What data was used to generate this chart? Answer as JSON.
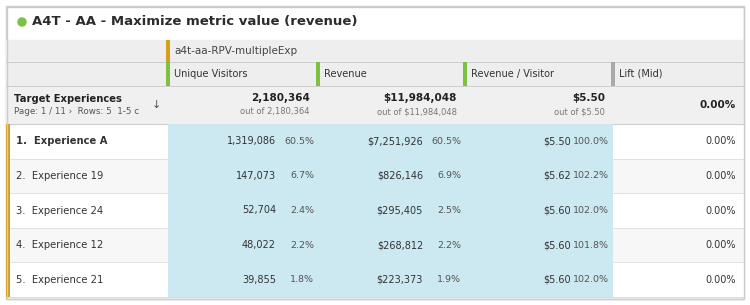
{
  "title": "A4T - AA - Maximize metric value (revenue)",
  "title_dot_color": "#7bc142",
  "bg_color": "#ffffff",
  "table_outer_bg": "#f5f5f5",
  "cell_highlight": "#cce8f0",
  "border_color": "#cccccc",
  "row_sep_color": "#dddddd",
  "yellow_bar_color": "#d4a017",
  "green_bar_color": "#7bc142",
  "gray_bar_color": "#aaaaaa",
  "subheader_text": "a4t-aa-RPV-multipleExp",
  "col_headers": [
    "Unique Visitors",
    "Revenue",
    "Revenue / Visitor",
    "Lift (Mid)"
  ],
  "rows": [
    {
      "rank": "1.",
      "name": "Experience A",
      "uv": "1,319,086",
      "uv_pct": "60.5%",
      "rev": "$7,251,926",
      "rev_pct": "60.5%",
      "rpv": "$5.50",
      "rpv_pct": "100.0%",
      "lift": "0.00%",
      "bold": true
    },
    {
      "rank": "2.",
      "name": "Experience 19",
      "uv": "147,073",
      "uv_pct": "6.7%",
      "rev": "$826,146",
      "rev_pct": "6.9%",
      "rpv": "$5.62",
      "rpv_pct": "102.2%",
      "lift": "0.00%",
      "bold": false
    },
    {
      "rank": "3.",
      "name": "Experience 24",
      "uv": "52,704",
      "uv_pct": "2.4%",
      "rev": "$295,405",
      "rev_pct": "2.5%",
      "rpv": "$5.60",
      "rpv_pct": "102.0%",
      "lift": "0.00%",
      "bold": false
    },
    {
      "rank": "4.",
      "name": "Experience 12",
      "uv": "48,022",
      "uv_pct": "2.2%",
      "rev": "$268,812",
      "rev_pct": "2.2%",
      "rpv": "$5.60",
      "rpv_pct": "101.8%",
      "lift": "0.00%",
      "bold": false
    },
    {
      "rank": "5.",
      "name": "Experience 21",
      "uv": "39,855",
      "uv_pct": "1.8%",
      "rev": "$223,373",
      "rev_pct": "1.9%",
      "rpv": "$5.60",
      "rpv_pct": "102.0%",
      "lift": "0.00%",
      "bold": false
    }
  ]
}
